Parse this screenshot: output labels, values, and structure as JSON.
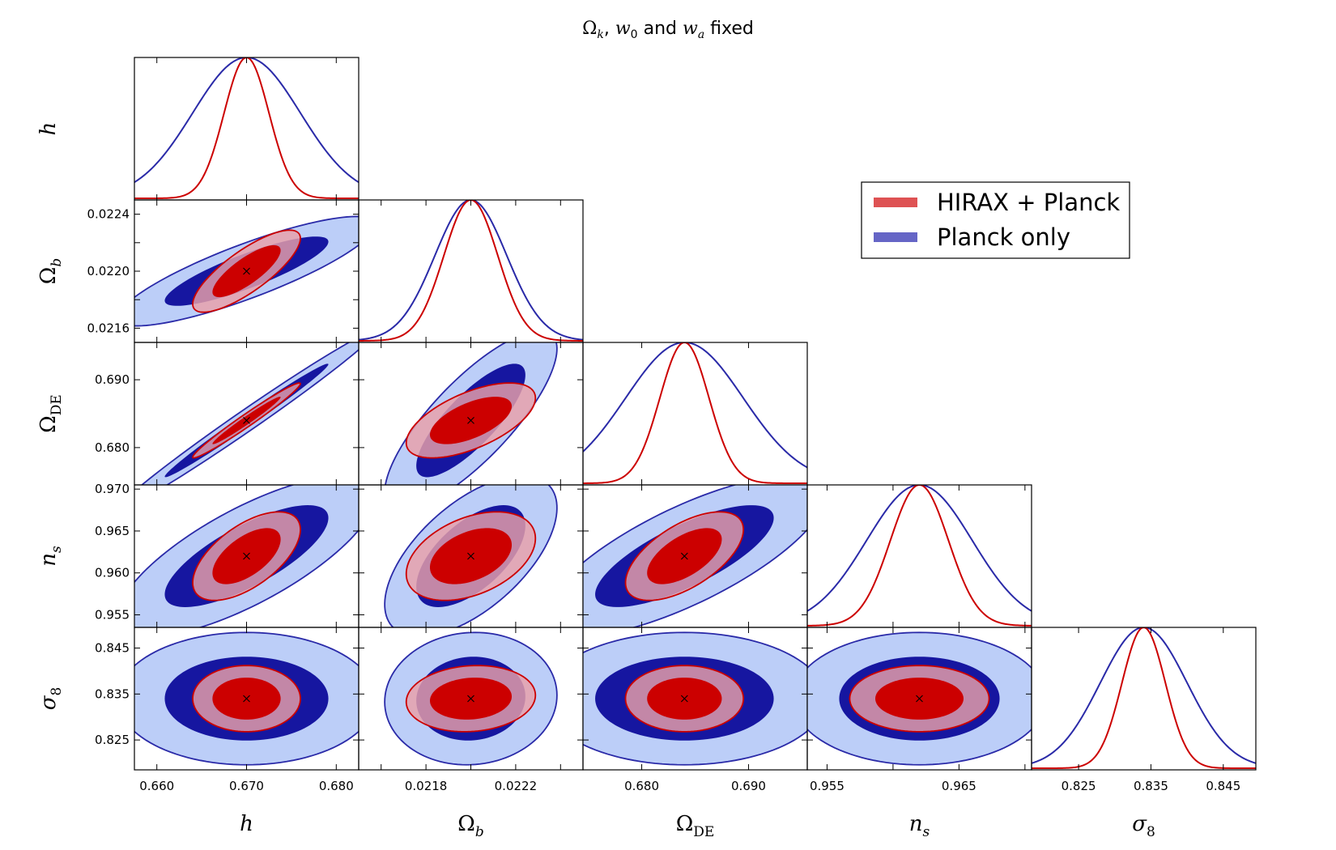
{
  "title": "Ωk, w0 and wa fixed",
  "title_parts": {
    "omega": "Ω",
    "k": "k",
    "sep1": ", ",
    "w": "w",
    "zero": "0",
    "and": " and ",
    "w2": "w",
    "a": "a",
    "fixed": " fixed"
  },
  "legend": {
    "placement": "upper-right",
    "entries": [
      {
        "label": "HIRAX + Planck",
        "color": "#d62728"
      },
      {
        "label": "Planck only",
        "color": "#3f3fb8"
      }
    ]
  },
  "colors": {
    "planck_outer_fill": "#bccef8",
    "planck_inner_fill": "#1616a0",
    "planck_edge": "#2a2aa8",
    "hirax_outer_fill": "#e9a0a8",
    "hirax_inner_fill": "#cc0000",
    "hirax_edge": "#cc0000",
    "marker": "#000000"
  },
  "chart_data": {
    "type": "triangle-corner-plot",
    "title": "Ωk, w0 and wa fixed",
    "parameters": [
      {
        "key": "h",
        "label": "h",
        "label_main": "h",
        "label_sub": "",
        "fiducial": 0.67,
        "range": [
          0.6575,
          0.6825
        ],
        "ticks": [
          0.66,
          0.67,
          0.68
        ],
        "tick_labels": [
          "0.660",
          "0.670",
          "0.680"
        ],
        "sigma_planck": 0.006,
        "sigma_hirax": 0.0025
      },
      {
        "key": "omega_b",
        "label": "Ωb",
        "label_main": "Ω",
        "label_sub": "b",
        "fiducial": 0.022,
        "range": [
          0.0215,
          0.0225
        ],
        "ticks": [
          0.0216,
          0.0218,
          0.022,
          0.0222,
          0.0224
        ],
        "tick_labels": [
          "0.0216",
          "0.0218",
          "0.0220",
          "0.0222",
          "0.0224"
        ],
        "sigma_planck": 0.00016,
        "sigma_hirax": 0.00012
      },
      {
        "key": "omega_de",
        "label": "ΩDE",
        "label_main": "Ω",
        "label_sub": "DE",
        "fiducial": 0.684,
        "range": [
          0.6745,
          0.6955
        ],
        "ticks": [
          0.68,
          0.69
        ],
        "tick_labels": [
          "0.680",
          "0.690"
        ],
        "sigma_planck": 0.0055,
        "sigma_hirax": 0.0023
      },
      {
        "key": "n_s",
        "label": "ns",
        "label_main": "n",
        "label_sub": "s",
        "fiducial": 0.962,
        "range": [
          0.9535,
          0.9705
        ],
        "ticks": [
          0.955,
          0.96,
          0.965,
          0.97
        ],
        "tick_labels": [
          "0.955",
          "0.960",
          "0.965",
          "0.970"
        ],
        "sigma_planck": 0.004,
        "sigma_hirax": 0.0022
      },
      {
        "key": "sigma_8",
        "label": "σ8",
        "label_main": "σ",
        "label_sub": "8",
        "fiducial": 0.834,
        "range": [
          0.8185,
          0.8495
        ],
        "ticks": [
          0.825,
          0.835,
          0.845
        ],
        "tick_labels": [
          "0.825",
          "0.835",
          "0.845"
        ],
        "sigma_planck": 0.006,
        "sigma_hirax": 0.003
      }
    ],
    "correlations": {
      "planck": [
        [
          1.0,
          0.85,
          0.99,
          0.75,
          0.0
        ],
        [
          0.85,
          1.0,
          0.8,
          0.6,
          0.05
        ],
        [
          0.99,
          0.8,
          1.0,
          0.75,
          0.0
        ],
        [
          0.75,
          0.6,
          0.75,
          1.0,
          0.0
        ],
        [
          0.0,
          0.05,
          0.0,
          0.0,
          1.0
        ]
      ],
      "hirax": [
        [
          1.0,
          0.8,
          0.98,
          0.6,
          0.0
        ],
        [
          0.8,
          1.0,
          0.6,
          0.4,
          0.1
        ],
        [
          0.98,
          0.6,
          1.0,
          0.6,
          0.0
        ],
        [
          0.6,
          0.4,
          0.6,
          1.0,
          0.0
        ],
        [
          0.0,
          0.1,
          0.0,
          0.0,
          1.0
        ]
      ]
    },
    "contour_levels": [
      "1-sigma",
      "2-sigma"
    ],
    "series": [
      {
        "name": "HIRAX + Planck",
        "key": "hirax"
      },
      {
        "name": "Planck only",
        "key": "planck"
      }
    ]
  }
}
